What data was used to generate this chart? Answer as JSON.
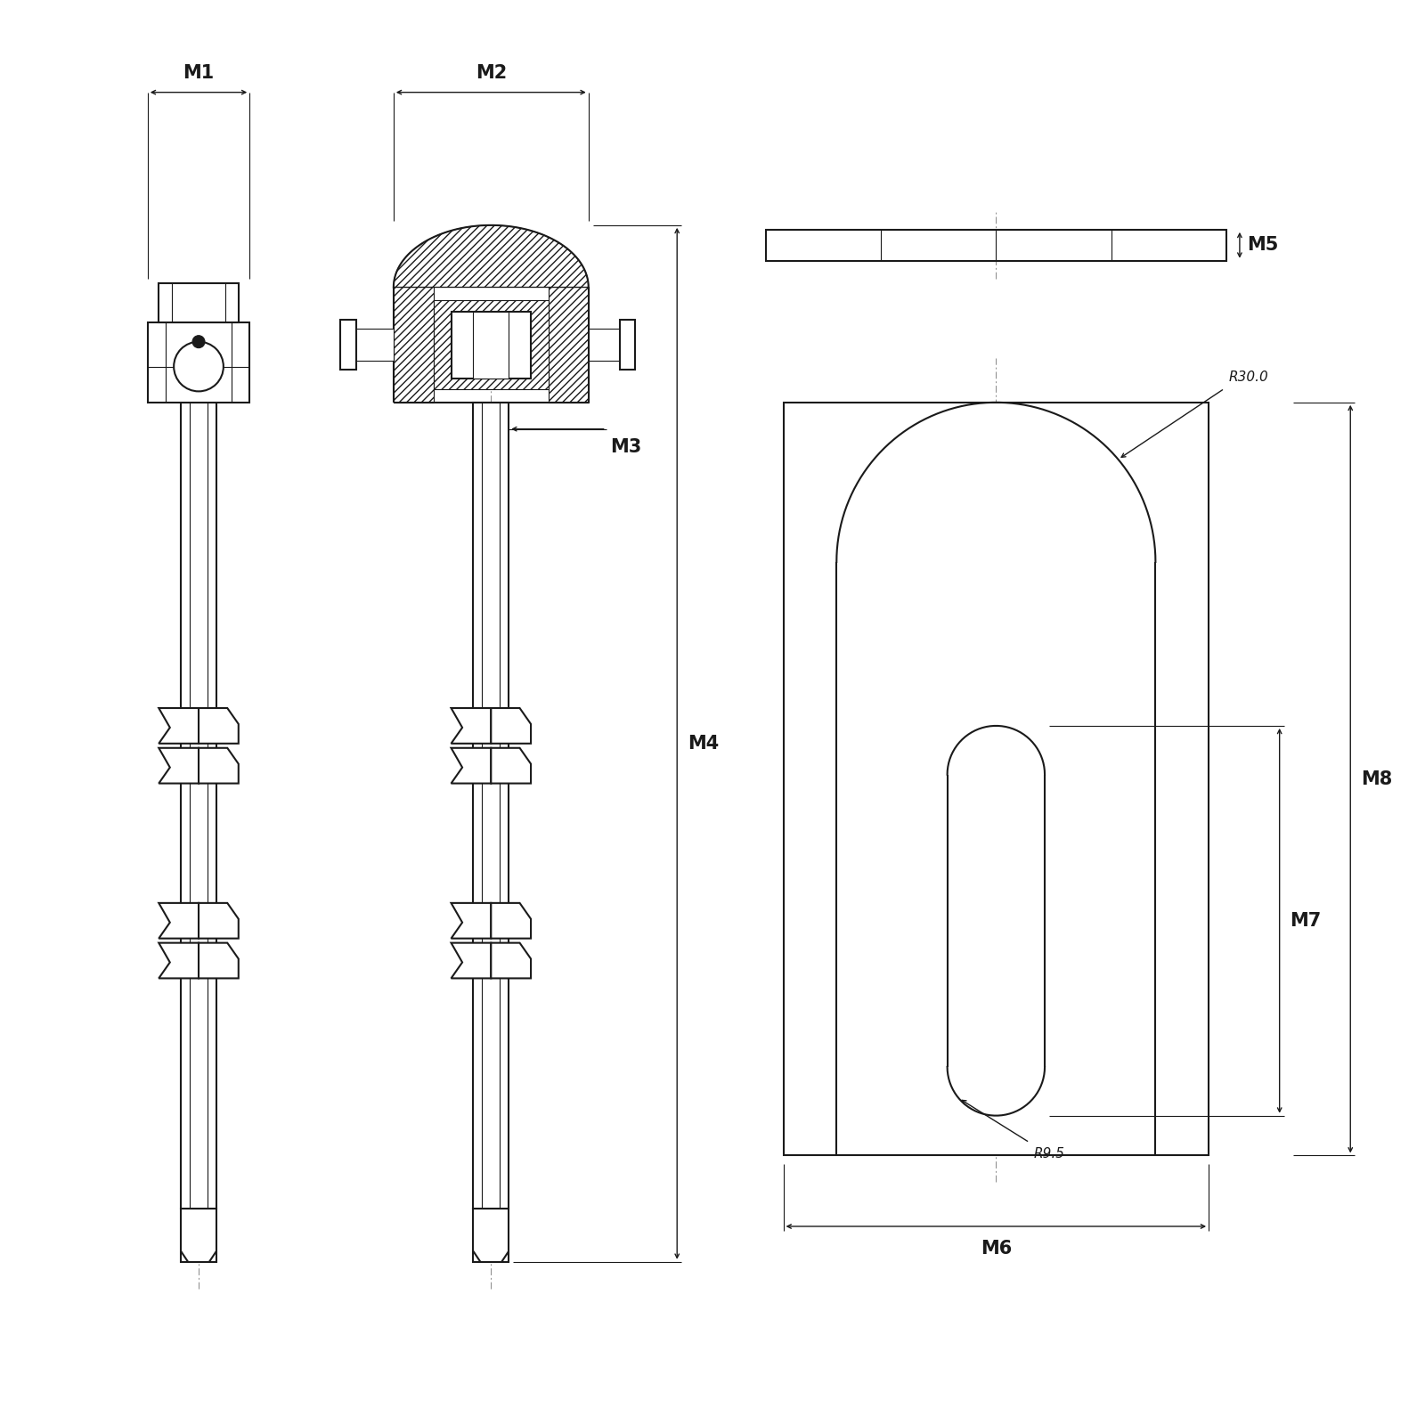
{
  "background_color": "#ffffff",
  "line_color": "#1a1a1a",
  "labels": {
    "M1": "M1",
    "M2": "M2",
    "M3": "M3",
    "M4": "M4",
    "M5": "M5",
    "M6": "M6",
    "M7": "M7",
    "M8": "M8",
    "R30": "R30.0",
    "R9": "R9.5"
  },
  "label_fontsize": 15,
  "dim_fontsize": 11
}
